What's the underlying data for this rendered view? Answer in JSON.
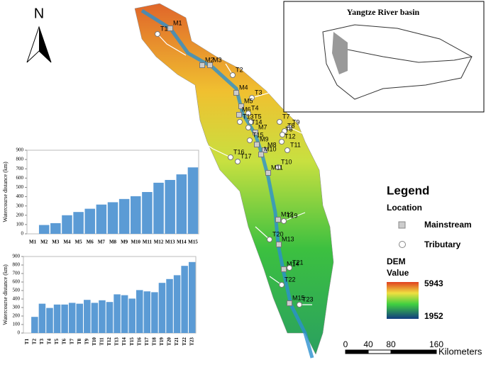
{
  "chart_data": [
    {
      "type": "bar",
      "y_label": "Watercourse distance (km)",
      "color": "#5b9bd5",
      "categories": [
        "M1",
        "M2",
        "M3",
        "M4",
        "M5",
        "M6",
        "M7",
        "M8",
        "M9",
        "M10",
        "M11",
        "M12",
        "M13",
        "M14",
        "M15"
      ],
      "values": [
        0,
        95,
        115,
        200,
        235,
        270,
        315,
        340,
        375,
        405,
        450,
        550,
        580,
        640,
        715
      ],
      "ylim": [
        0,
        900
      ],
      "yticks": [
        0,
        100,
        200,
        300,
        400,
        500,
        600,
        700,
        800,
        900
      ]
    },
    {
      "type": "bar",
      "y_label": "Watercourse distance (km)",
      "color": "#5b9bd5",
      "categories": [
        "T1",
        "T2",
        "T3",
        "T4",
        "T5",
        "T6",
        "T7",
        "T8",
        "T9",
        "T10",
        "T11",
        "T12",
        "T13",
        "T14",
        "T15",
        "T16",
        "T17",
        "T18",
        "T19",
        "T20",
        "T21",
        "T22",
        "T23"
      ],
      "values": [
        0,
        190,
        345,
        295,
        335,
        335,
        355,
        345,
        390,
        355,
        385,
        365,
        455,
        445,
        405,
        505,
        490,
        480,
        590,
        635,
        680,
        790,
        835
      ],
      "ylim": [
        0,
        900
      ],
      "yticks": [
        0,
        100,
        200,
        300,
        400,
        500,
        600,
        700,
        800,
        900
      ]
    }
  ],
  "map": {
    "north": "N",
    "points": [
      {
        "label": "M1"
      },
      {
        "label": "T1"
      },
      {
        "label": "M2"
      },
      {
        "label": "M3"
      },
      {
        "label": "T2"
      },
      {
        "label": "M4"
      },
      {
        "label": "T3"
      },
      {
        "label": "M5"
      },
      {
        "label": "M6"
      },
      {
        "label": "T4"
      },
      {
        "label": "T13"
      },
      {
        "label": "T5"
      },
      {
        "label": "T7"
      },
      {
        "label": "T9"
      },
      {
        "label": "T14"
      },
      {
        "label": "T8"
      },
      {
        "label": "M7"
      },
      {
        "label": "T6"
      },
      {
        "label": "T15"
      },
      {
        "label": "M9"
      },
      {
        "label": "T12"
      },
      {
        "label": "M8"
      },
      {
        "label": "T11"
      },
      {
        "label": "M10"
      },
      {
        "label": "T16"
      },
      {
        "label": "T17"
      },
      {
        "label": "T10"
      },
      {
        "label": "M11"
      },
      {
        "label": "M12"
      },
      {
        "label": "T19"
      },
      {
        "label": "T20"
      },
      {
        "label": "M13"
      },
      {
        "label": "M14"
      },
      {
        "label": "T21"
      },
      {
        "label": "T22"
      },
      {
        "label": "M15"
      },
      {
        "label": "T23"
      }
    ]
  },
  "inset": {
    "title": "Yangtze River basin"
  },
  "legend": {
    "title": "Legend",
    "location": "Location",
    "mainstream": "Mainstream",
    "tributary": "Tributary",
    "dem": "DEM",
    "value": "Value",
    "max": "5943",
    "min": "1952"
  },
  "scale_bar": {
    "ticks": [
      0,
      40,
      80,
      160
    ],
    "unit": "Kilometers"
  }
}
